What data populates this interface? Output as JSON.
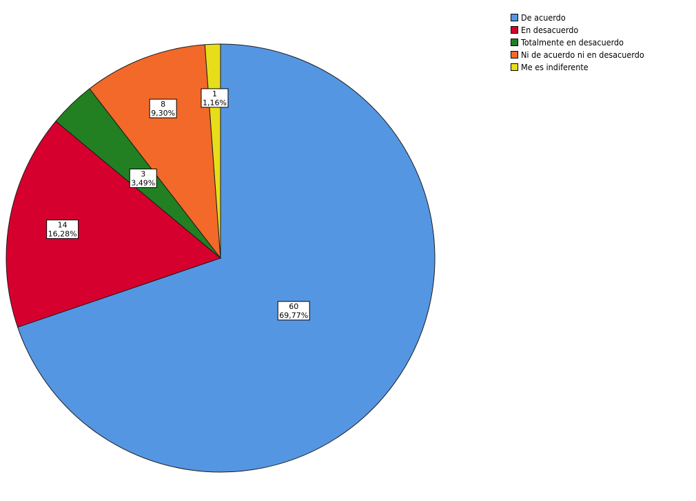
{
  "chart_data": {
    "type": "pie",
    "title": "",
    "slices": [
      {
        "label": "De acuerdo",
        "count": 60,
        "percent": "69,77%",
        "color": "#5596e3"
      },
      {
        "label": "En desacuerdo",
        "count": 14,
        "percent": "16,28%",
        "color": "#d6002e"
      },
      {
        "label": "Totalmente en desacuerdo",
        "count": 3,
        "percent": "3,49%",
        "color": "#228023"
      },
      {
        "label": "Ni de acuerdo ni en desacuerdo",
        "count": 8,
        "percent": "9,30%",
        "color": "#f2692a"
      },
      {
        "label": "Me es indiferente",
        "count": 1,
        "percent": "1,16%",
        "color": "#e8dd1a"
      }
    ],
    "start_angle": "12 o'clock",
    "direction": "clockwise",
    "legend_position": "top-right"
  }
}
